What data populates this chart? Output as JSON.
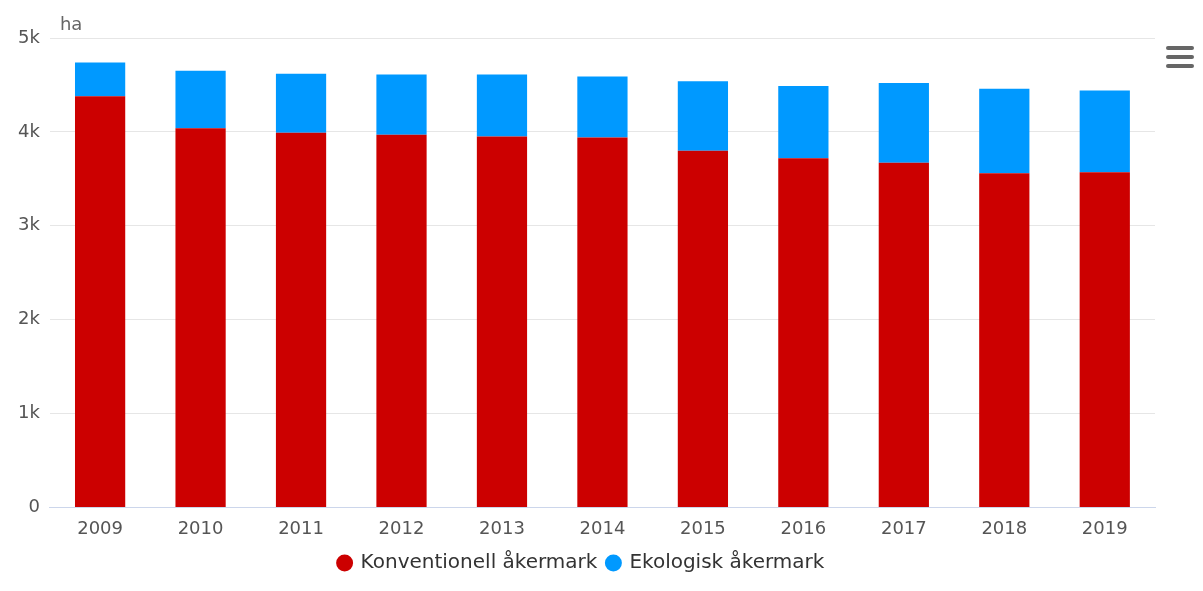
{
  "chart_data": {
    "type": "bar",
    "ylabel": "ha",
    "stacked": true,
    "grid": "y",
    "legend": "bottom",
    "categories": [
      "2009",
      "2010",
      "2011",
      "2012",
      "2013",
      "2014",
      "2015",
      "2016",
      "2017",
      "2018",
      "2019"
    ],
    "series": [
      {
        "name": "Konventionell åkermark",
        "color": "#cc0000",
        "values": [
          4380,
          4040,
          3990,
          3970,
          3950,
          3940,
          3800,
          3720,
          3670,
          3560,
          3570
        ]
      },
      {
        "name": "Ekologisk åkermark",
        "color": "#0099ff",
        "values": [
          360,
          610,
          630,
          640,
          660,
          650,
          740,
          770,
          850,
          900,
          870
        ]
      }
    ],
    "ylim": [
      0,
      5000
    ],
    "yticks": [
      0,
      {
        "value": 1000,
        "label": "1k"
      },
      {
        "value": 2000,
        "label": "2k"
      },
      {
        "value": 3000,
        "label": "3k"
      },
      {
        "value": 4000,
        "label": "4k"
      },
      {
        "value": 5000,
        "label": "5k"
      }
    ]
  }
}
